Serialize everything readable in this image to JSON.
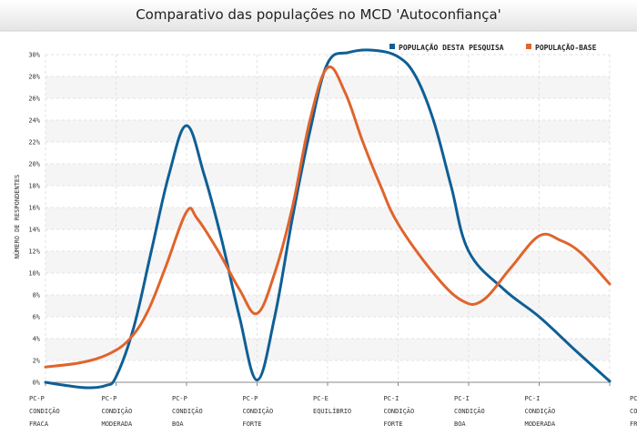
{
  "chart_data": {
    "type": "line",
    "title": "Comparativo das populações no MCD 'Autoconfiança'",
    "ylabel": "NÚMERO DE RESPONDENTES",
    "ylim": [
      0,
      30
    ],
    "yticks": [
      "0%",
      "2%",
      "4%",
      "6%",
      "8%",
      "10%",
      "12%",
      "14%",
      "16%",
      "18%",
      "20%",
      "22%",
      "24%",
      "26%",
      "28%",
      "30%"
    ],
    "categories": [
      [
        "PC-P",
        "CONDIÇÃO",
        "FRACA"
      ],
      [
        "PC-P",
        "CONDIÇÃO",
        "MODERADA"
      ],
      [
        "PC-P",
        "CONDIÇÃO",
        "BOA"
      ],
      [
        "PC-P",
        "CONDIÇÃO",
        "FORTE"
      ],
      [
        "PC-E",
        "EQUILÍBRIO",
        ""
      ],
      [
        "PC-I",
        "CONDIÇÃO",
        "FORTE"
      ],
      [
        "PC-I",
        "CONDIÇÃO",
        "BOA"
      ],
      [
        "PC-I",
        "CONDIÇÃO",
        "MODERADA"
      ],
      [
        "PC-I",
        "CONDIÇÃO",
        "FRACA"
      ]
    ],
    "series": [
      {
        "name": "POPULAÇÃO DESTA PESQUISA",
        "color": "#0f5f96",
        "points": [
          [
            0,
            0.0
          ],
          [
            0.3,
            -0.3
          ],
          [
            0.6,
            -0.5
          ],
          [
            0.85,
            -0.3
          ],
          [
            1.0,
            0.5
          ],
          [
            1.25,
            5.0
          ],
          [
            1.5,
            12.0
          ],
          [
            1.75,
            19.0
          ],
          [
            2.0,
            23.5
          ],
          [
            2.25,
            19.0
          ],
          [
            2.5,
            13.0
          ],
          [
            2.75,
            6.0
          ],
          [
            3.0,
            0.2
          ],
          [
            3.25,
            6.0
          ],
          [
            3.5,
            15.0
          ],
          [
            3.75,
            23.0
          ],
          [
            4.0,
            29.2
          ],
          [
            4.3,
            30.2
          ],
          [
            4.65,
            30.4
          ],
          [
            5.0,
            29.8
          ],
          [
            5.25,
            28.0
          ],
          [
            5.5,
            24.0
          ],
          [
            5.75,
            18.0
          ],
          [
            6.0,
            12.0
          ],
          [
            6.5,
            8.5
          ],
          [
            7.0,
            6.0
          ],
          [
            7.5,
            3.0
          ],
          [
            8.0,
            0.1
          ]
        ]
      },
      {
        "name": "POPULAÇÃO-BASE",
        "color": "#e0642c",
        "points": [
          [
            0,
            1.4
          ],
          [
            0.5,
            1.8
          ],
          [
            0.9,
            2.6
          ],
          [
            1.2,
            4.0
          ],
          [
            1.45,
            6.5
          ],
          [
            1.7,
            10.5
          ],
          [
            2.0,
            15.6
          ],
          [
            2.15,
            15.0
          ],
          [
            2.45,
            12.0
          ],
          [
            2.75,
            8.5
          ],
          [
            3.0,
            6.3
          ],
          [
            3.25,
            10.0
          ],
          [
            3.5,
            16.0
          ],
          [
            3.75,
            24.0
          ],
          [
            4.0,
            28.8
          ],
          [
            4.25,
            26.5
          ],
          [
            4.5,
            22.0
          ],
          [
            4.75,
            18.0
          ],
          [
            5.0,
            14.5
          ],
          [
            5.5,
            10.0
          ],
          [
            5.9,
            7.5
          ],
          [
            6.2,
            7.5
          ],
          [
            6.6,
            10.5
          ],
          [
            7.0,
            13.4
          ],
          [
            7.3,
            13.0
          ],
          [
            7.6,
            11.8
          ],
          [
            8.0,
            9.0
          ]
        ]
      }
    ],
    "legend_position": "top-right",
    "grid": true
  }
}
